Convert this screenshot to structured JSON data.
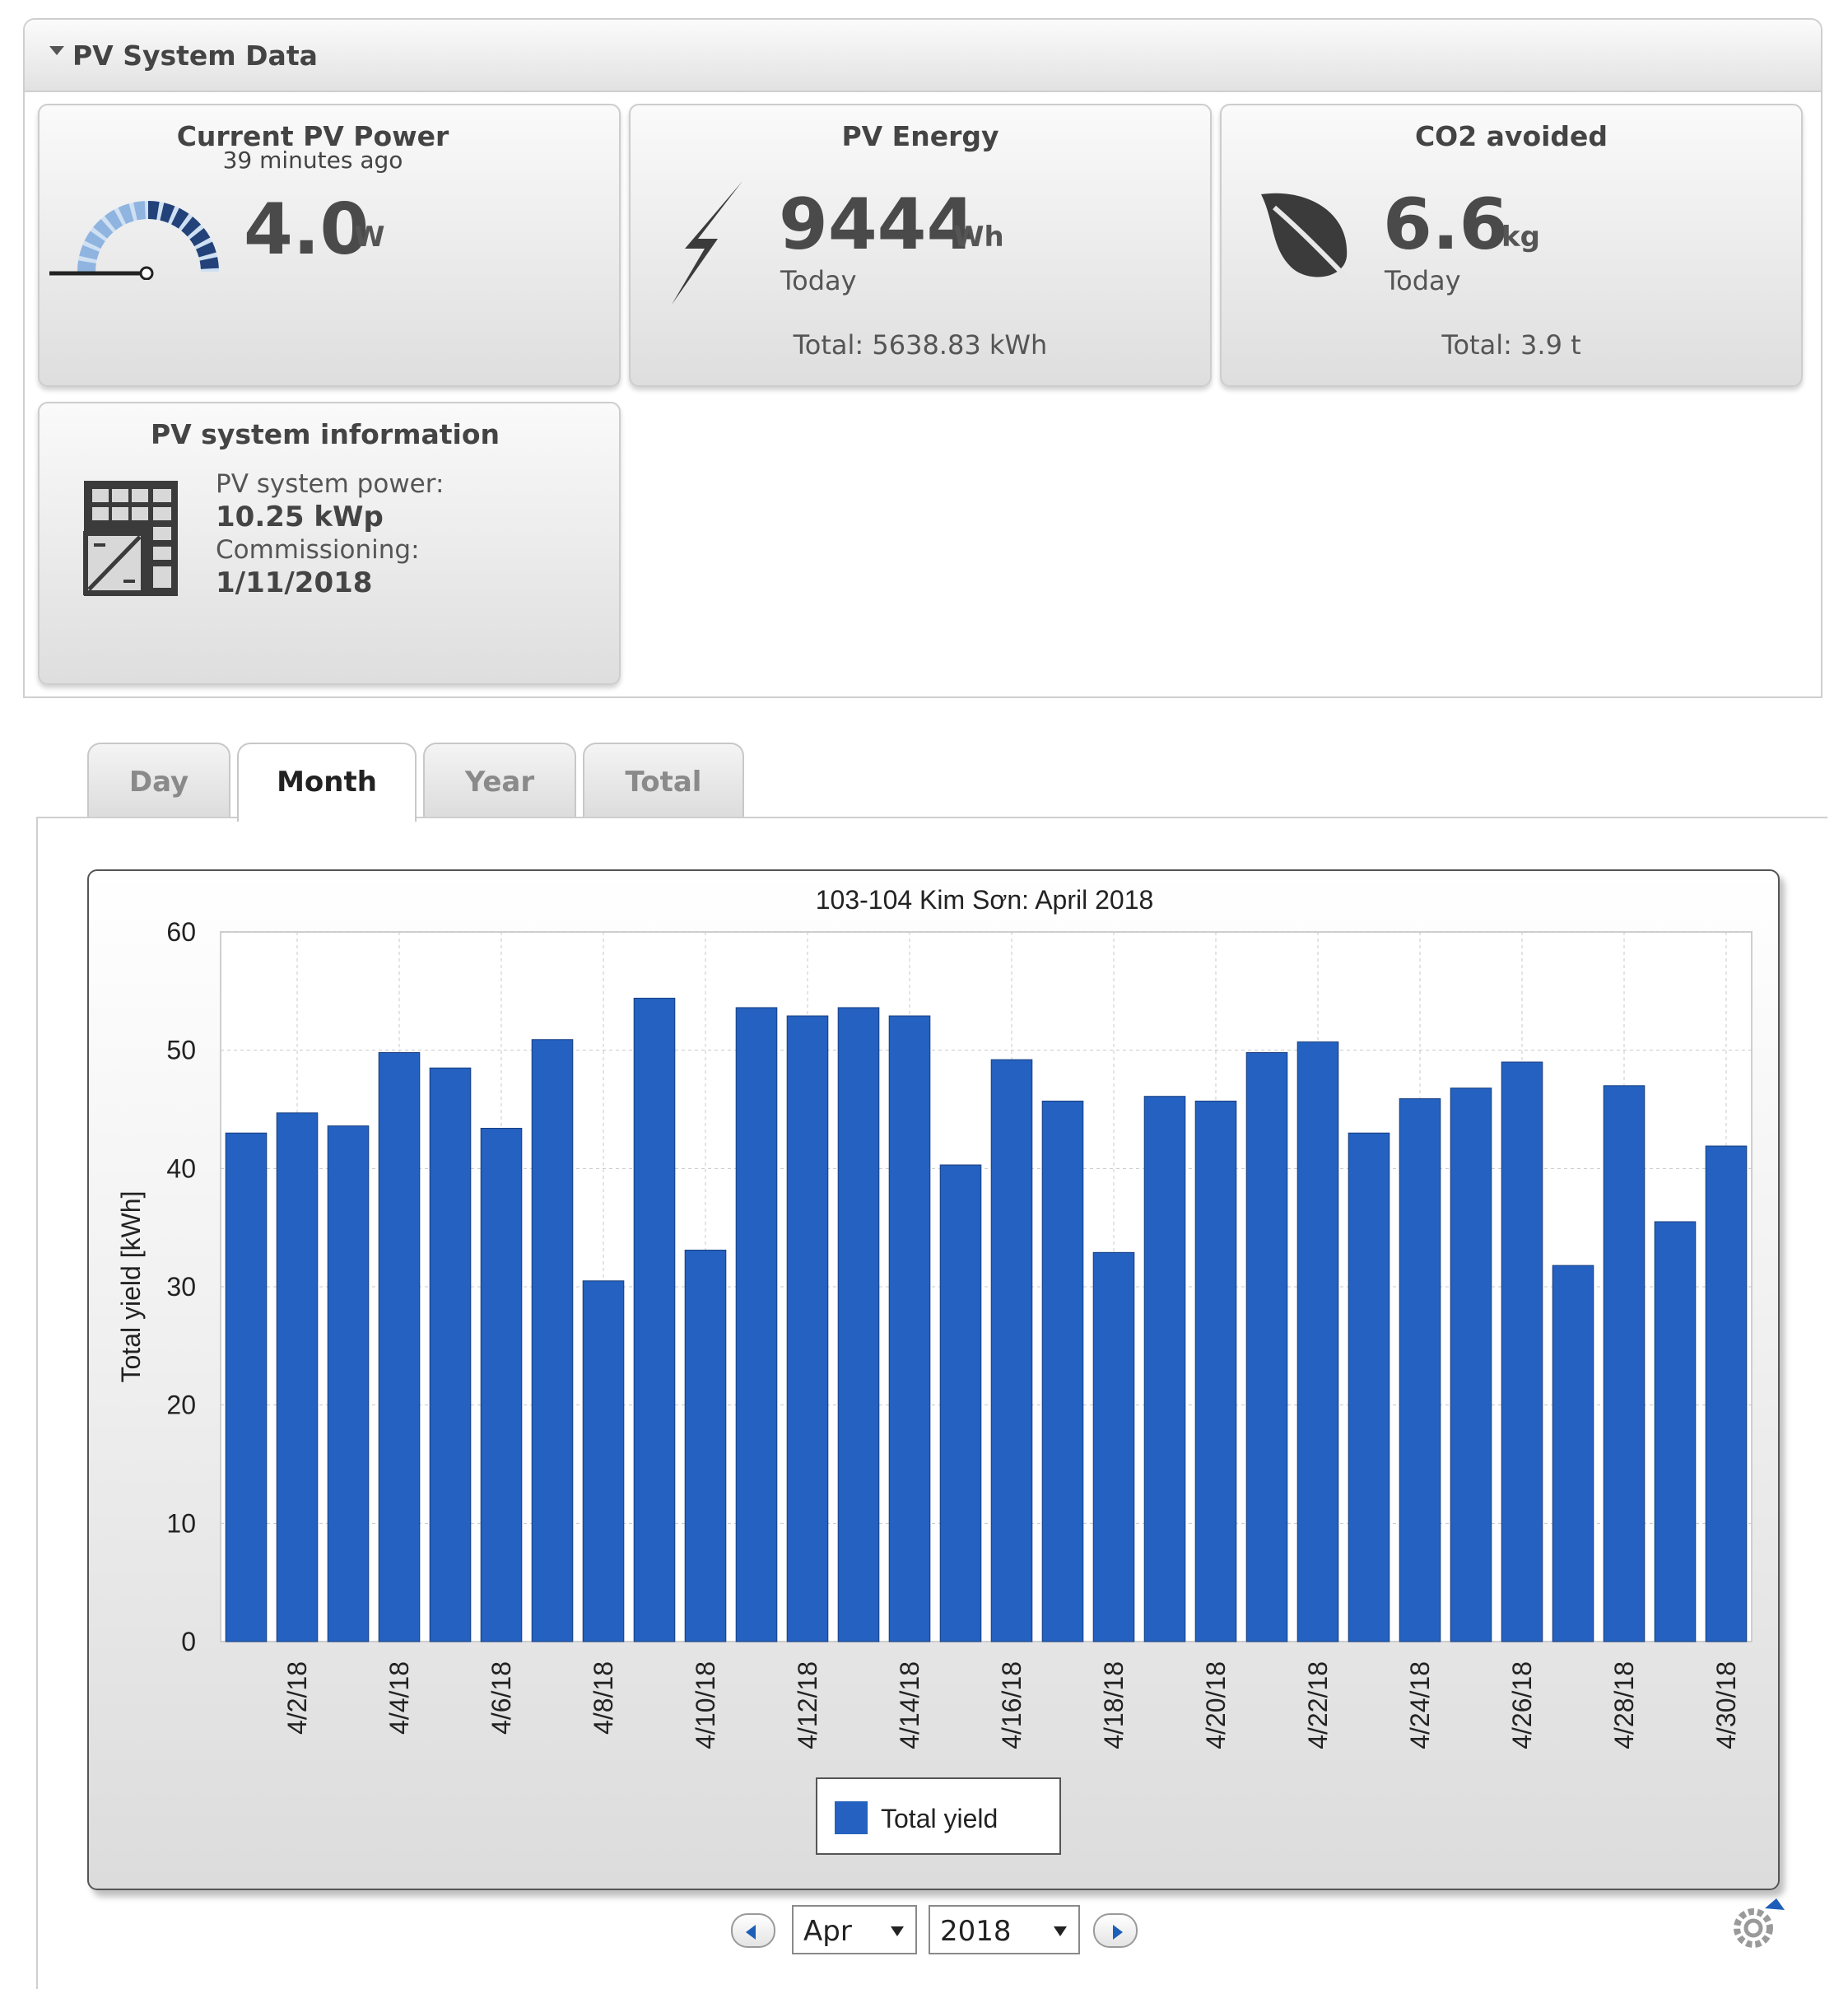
{
  "panel": {
    "title": "PV System Data"
  },
  "tiles": {
    "current_power": {
      "title": "Current PV Power",
      "subtitle": "39 minutes ago",
      "value": "4.0",
      "unit": "W"
    },
    "energy": {
      "title": "PV Energy",
      "value": "9444",
      "unit": "Wh",
      "period": "Today",
      "total": "Total: 5638.83 kWh"
    },
    "co2": {
      "title": "CO2 avoided",
      "value": "6.6",
      "unit": "kg",
      "period": "Today",
      "total": "Total: 3.9 t"
    },
    "info": {
      "title": "PV system information",
      "power_label": "PV system power:",
      "power_value": "10.25 kWp",
      "commissioning_label": "Commissioning:",
      "commissioning_value": "1/11/2018"
    }
  },
  "tabs": [
    {
      "label": "Day",
      "active": false
    },
    {
      "label": "Month",
      "active": true
    },
    {
      "label": "Year",
      "active": false
    },
    {
      "label": "Total",
      "active": false
    }
  ],
  "controls": {
    "month": "Apr",
    "year": "2018"
  },
  "colors": {
    "bar": "#2461c0",
    "grid": "#c8c8c8"
  },
  "chart_data": {
    "type": "bar",
    "title": "103-104 Kim Sơn: April 2018",
    "ylabel": "Total yield [kWh]",
    "xlabel": "",
    "ylim": [
      0,
      60
    ],
    "yticks": [
      0,
      10,
      20,
      30,
      40,
      50,
      60
    ],
    "legend": {
      "placement": "bottom-center"
    },
    "grid": true,
    "categories": [
      "4/1/18",
      "4/2/18",
      "4/3/18",
      "4/4/18",
      "4/5/18",
      "4/6/18",
      "4/7/18",
      "4/8/18",
      "4/9/18",
      "4/10/18",
      "4/11/18",
      "4/12/18",
      "4/13/18",
      "4/14/18",
      "4/15/18",
      "4/16/18",
      "4/17/18",
      "4/18/18",
      "4/19/18",
      "4/20/18",
      "4/21/18",
      "4/22/18",
      "4/23/18",
      "4/24/18",
      "4/25/18",
      "4/26/18",
      "4/27/18",
      "4/28/18",
      "4/29/18",
      "4/30/18"
    ],
    "tick_labels": [
      "4/2/18",
      "4/4/18",
      "4/6/18",
      "4/8/18",
      "4/10/18",
      "4/12/18",
      "4/14/18",
      "4/16/18",
      "4/18/18",
      "4/20/18",
      "4/22/18",
      "4/24/18",
      "4/26/18",
      "4/28/18",
      "4/30/18"
    ],
    "series": [
      {
        "name": "Total yield",
        "values": [
          43.0,
          44.7,
          43.6,
          49.8,
          48.5,
          43.4,
          50.9,
          30.5,
          54.4,
          33.1,
          53.6,
          52.9,
          53.6,
          52.9,
          40.3,
          49.2,
          45.7,
          32.9,
          46.1,
          45.7,
          49.8,
          50.7,
          43.0,
          45.9,
          46.8,
          49.0,
          31.8,
          47.0,
          35.5,
          41.9
        ]
      }
    ]
  }
}
